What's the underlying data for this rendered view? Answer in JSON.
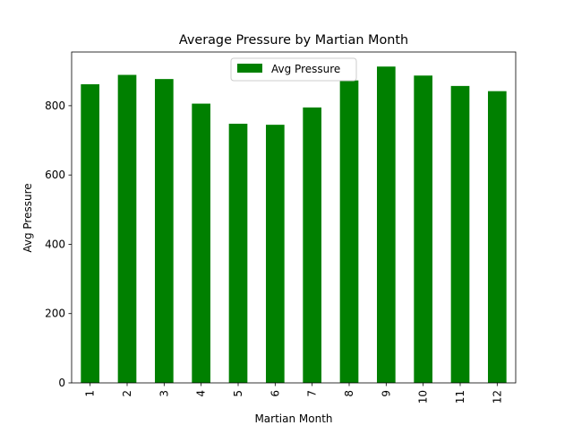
{
  "chart_data": {
    "type": "bar",
    "title": "Average Pressure by Martian Month",
    "xlabel": "Martian Month",
    "ylabel": "Avg Pressure",
    "categories": [
      "1",
      "2",
      "3",
      "4",
      "5",
      "6",
      "7",
      "8",
      "9",
      "10",
      "11",
      "12"
    ],
    "series": [
      {
        "name": "Avg Pressure",
        "color": "#008000",
        "values": [
          862,
          889,
          877,
          806,
          748,
          745,
          795,
          873,
          913,
          887,
          857,
          842
        ]
      }
    ],
    "ylim": [
      0,
      955
    ],
    "yticks": [
      0,
      200,
      400,
      600,
      800
    ],
    "grid": false,
    "legend_position": "upper center"
  }
}
